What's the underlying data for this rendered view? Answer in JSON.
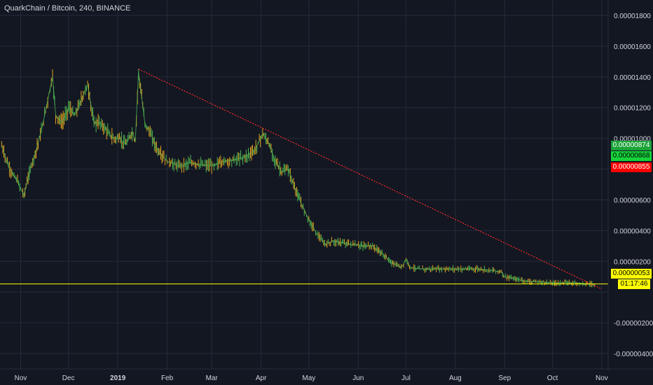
{
  "header": {
    "symbol_title": "QuarkChain / Bitcoin, 240, BINANCE"
  },
  "colors": {
    "background": "#131722",
    "grid": "#262b3a",
    "text": "#d1d4dc",
    "candle_up": "#4caf50",
    "candle_down": "#e0a020",
    "trendline": "#ff2a2a",
    "current_price_line": "#ffff00"
  },
  "price_tags": [
    {
      "label": "0.00000874",
      "kind": "hi1"
    },
    {
      "label": "0.00000868",
      "kind": "hi2"
    },
    {
      "label": "0.00000855",
      "kind": "lo"
    }
  ],
  "current_price": {
    "label": "0.00000053",
    "value": 5.3e-07
  },
  "countdown": {
    "label": "01:17:46"
  },
  "chart_data": {
    "type": "line",
    "title": "QuarkChain / Bitcoin, 240, BINANCE",
    "xlabel": "",
    "ylabel": "",
    "ylim": [
      -5e-06,
      1.9e-05
    ],
    "grid": true,
    "x_tick_labels": [
      "Nov",
      "Dec",
      "2019",
      "Feb",
      "Mar",
      "Apr",
      "May",
      "Jun",
      "Jul",
      "Aug",
      "Sep",
      "Oct",
      "Nov"
    ],
    "y_tick_labels": [
      {
        "value": 1.8e-05,
        "label": "0.00001800"
      },
      {
        "value": 1.6e-05,
        "label": "0.00001600"
      },
      {
        "value": 1.4e-05,
        "label": "0.00001400"
      },
      {
        "value": 1.2e-05,
        "label": "0.00001200"
      },
      {
        "value": 1e-05,
        "label": "0.00001000"
      },
      {
        "value": 6e-06,
        "label": "0.00000600"
      },
      {
        "value": 4e-06,
        "label": "0.00000400"
      },
      {
        "value": 2e-06,
        "label": "0.00000200"
      },
      {
        "value": -2e-06,
        "label": "-0.00000200"
      },
      {
        "value": -4e-06,
        "label": "-0.00000400"
      }
    ],
    "series": [
      {
        "x": [
          "2018-10-20",
          "2018-10-25",
          "2018-10-30",
          "2018-11-03",
          "2018-11-07",
          "2018-11-10",
          "2018-11-14",
          "2018-11-18",
          "2018-11-21",
          "2018-11-23",
          "2018-11-27",
          "2018-12-01",
          "2018-12-05",
          "2018-12-09",
          "2018-12-13",
          "2018-12-17",
          "2018-12-21",
          "2018-12-25",
          "2018-12-29",
          "2019-01-02",
          "2019-01-06",
          "2019-01-10",
          "2019-01-12",
          "2019-01-14",
          "2019-01-18",
          "2019-01-22",
          "2019-01-26",
          "2019-02-01",
          "2019-02-08",
          "2019-02-15",
          "2019-02-22",
          "2019-03-01",
          "2019-03-08",
          "2019-03-15",
          "2019-03-22",
          "2019-03-28",
          "2019-04-02",
          "2019-04-06",
          "2019-04-10",
          "2019-04-14",
          "2019-04-18",
          "2019-04-22",
          "2019-04-26",
          "2019-05-01",
          "2019-05-06",
          "2019-05-11",
          "2019-05-16",
          "2019-05-22",
          "2019-05-28",
          "2019-06-04",
          "2019-06-10",
          "2019-06-16",
          "2019-06-22",
          "2019-06-28",
          "2019-07-01",
          "2019-07-04",
          "2019-07-10",
          "2019-07-20",
          "2019-08-01",
          "2019-08-15",
          "2019-08-25",
          "2019-08-30",
          "2019-09-01",
          "2019-09-05",
          "2019-09-15",
          "2019-10-01",
          "2019-10-15",
          "2019-10-28"
        ],
        "values": [
          9.5e-06,
          8e-06,
          7.2e-06,
          6.3e-06,
          8e-06,
          9e-06,
          1.05e-05,
          1.25e-05,
          1.4e-05,
          1.15e-05,
          1.1e-05,
          1.2e-05,
          1.15e-05,
          1.25e-05,
          1.35e-05,
          1.1e-05,
          1.1e-05,
          1.05e-05,
          1e-05,
          1e-05,
          9.6e-06,
          1.04e-05,
          9.8e-06,
          1.43e-05,
          1.1e-05,
          1.02e-05,
          9.2e-06,
          8.5e-06,
          8.2e-06,
          8.4e-06,
          8.3e-06,
          8.2e-06,
          8.5e-06,
          8.6e-06,
          8.8e-06,
          9.2e-06,
          1.03e-05,
          9.6e-06,
          8.5e-06,
          7.8e-06,
          8e-06,
          6.8e-06,
          5.8e-06,
          4.7e-06,
          3.8e-06,
          3.1e-06,
          3.3e-06,
          3.2e-06,
          3.1e-06,
          3e-06,
          3e-06,
          2.5e-06,
          1.9e-06,
          1.6e-06,
          2.1e-06,
          1.6e-06,
          1.5e-06,
          1.5e-06,
          1.5e-06,
          1.5e-06,
          1.4e-06,
          1.3e-06,
          1e-06,
          9e-07,
          7e-07,
          6e-07,
          6e-07,
          5e-07
        ]
      }
    ],
    "trendline": {
      "from": [
        "2019-01-14",
        1.45e-05
      ],
      "to": [
        "2019-11-01",
        2e-07
      ]
    },
    "horizontal_line": {
      "value": 5.3e-07
    }
  }
}
